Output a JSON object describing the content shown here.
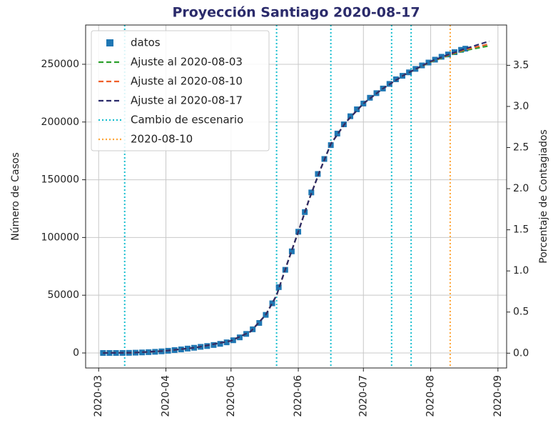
{
  "chart_data": {
    "type": "line",
    "title": "Proyección Santiago 2020-08-17",
    "ylabel": "Número de Casos",
    "y2label": "Porcentaje de Contagiados",
    "xlim": [
      "2020-02-24",
      "2020-09-05"
    ],
    "xticks": [
      {
        "value": "2020-03-01",
        "label": "2020-03"
      },
      {
        "value": "2020-04-01",
        "label": "2020-04"
      },
      {
        "value": "2020-05-01",
        "label": "2020-05"
      },
      {
        "value": "2020-06-01",
        "label": "2020-06"
      },
      {
        "value": "2020-07-01",
        "label": "2020-07"
      },
      {
        "value": "2020-08-01",
        "label": "2020-08"
      },
      {
        "value": "2020-09-01",
        "label": "2020-09"
      }
    ],
    "ylim": [
      -13000,
      284000
    ],
    "yticks": [
      0,
      50000,
      100000,
      150000,
      200000,
      250000
    ],
    "y2lim": [
      -0.18,
      3.99
    ],
    "y2ticks": [
      {
        "value": 0,
        "label": "0.0"
      },
      0.5,
      {
        "value": 1,
        "label": "1.0"
      },
      1.5,
      {
        "value": 2,
        "label": "2.0"
      },
      2.5,
      {
        "value": 3,
        "label": "3.0"
      },
      3.5
    ],
    "grid": true,
    "legend": "upper left",
    "series": [
      {
        "name": "datos",
        "color": "#1f77b4",
        "marker": "square",
        "x": [
          "2020-03-03",
          "2020-03-06",
          "2020-03-09",
          "2020-03-12",
          "2020-03-15",
          "2020-03-18",
          "2020-03-21",
          "2020-03-24",
          "2020-03-27",
          "2020-03-30",
          "2020-04-02",
          "2020-04-05",
          "2020-04-08",
          "2020-04-11",
          "2020-04-14",
          "2020-04-17",
          "2020-04-20",
          "2020-04-23",
          "2020-04-26",
          "2020-04-29",
          "2020-05-02",
          "2020-05-05",
          "2020-05-08",
          "2020-05-11",
          "2020-05-14",
          "2020-05-17",
          "2020-05-20",
          "2020-05-23",
          "2020-05-26",
          "2020-05-29",
          "2020-06-01",
          "2020-06-04",
          "2020-06-07",
          "2020-06-10",
          "2020-06-13",
          "2020-06-16",
          "2020-06-19",
          "2020-06-22",
          "2020-06-25",
          "2020-06-28",
          "2020-07-01",
          "2020-07-04",
          "2020-07-07",
          "2020-07-10",
          "2020-07-13",
          "2020-07-16",
          "2020-07-19",
          "2020-07-22",
          "2020-07-25",
          "2020-07-28",
          "2020-07-31",
          "2020-08-03",
          "2020-08-06",
          "2020-08-09",
          "2020-08-12",
          "2020-08-15",
          "2020-08-17"
        ],
        "values": [
          1,
          5,
          10,
          30,
          100,
          250,
          450,
          700,
          1000,
          1400,
          1900,
          2500,
          3100,
          3800,
          4500,
          5300,
          6000,
          6900,
          7900,
          9200,
          11000,
          13500,
          16500,
          20500,
          26000,
          33000,
          43000,
          57000,
          72000,
          88000,
          105000,
          122000,
          139000,
          155000,
          168000,
          180000,
          190000,
          198000,
          205000,
          211000,
          216000,
          221000,
          225000,
          229000,
          233000,
          237000,
          240000,
          243000,
          246000,
          249000,
          251500,
          254000,
          256500,
          258500,
          260500,
          262500,
          263500
        ]
      },
      {
        "name": "Ajuste al 2020-08-03",
        "color": "#2ca02c",
        "style": "dashed",
        "x": [
          "2020-03-03",
          "2020-03-17",
          "2020-04-01",
          "2020-04-15",
          "2020-05-01",
          "2020-05-10",
          "2020-05-17",
          "2020-05-22",
          "2020-05-27",
          "2020-06-01",
          "2020-06-06",
          "2020-06-11",
          "2020-06-16",
          "2020-06-23",
          "2020-07-01",
          "2020-07-10",
          "2020-07-20",
          "2020-08-01",
          "2020-08-10",
          "2020-08-17",
          "2020-08-28"
        ],
        "values": [
          0,
          200,
          1900,
          4700,
          10500,
          18500,
          33000,
          50000,
          78000,
          105000,
          133000,
          158000,
          181000,
          200000,
          216000,
          229000,
          241000,
          252000,
          258000,
          262000,
          266000
        ]
      },
      {
        "name": "Ajuste al 2020-08-10",
        "color": "#f0602a",
        "style": "dashed",
        "x": [
          "2020-03-03",
          "2020-03-17",
          "2020-04-01",
          "2020-04-15",
          "2020-05-01",
          "2020-05-10",
          "2020-05-17",
          "2020-05-22",
          "2020-05-27",
          "2020-06-01",
          "2020-06-06",
          "2020-06-11",
          "2020-06-16",
          "2020-06-23",
          "2020-07-01",
          "2020-07-10",
          "2020-07-20",
          "2020-08-01",
          "2020-08-10",
          "2020-08-17",
          "2020-08-28"
        ],
        "values": [
          0,
          200,
          1900,
          4700,
          10500,
          18500,
          33000,
          50000,
          78000,
          105000,
          133000,
          158000,
          181000,
          200000,
          216000,
          229000,
          241000,
          252300,
          258600,
          262800,
          267500
        ]
      },
      {
        "name": "Ajuste al 2020-08-17",
        "color": "#2b2b6b",
        "style": "dashed",
        "x": [
          "2020-03-03",
          "2020-03-17",
          "2020-04-01",
          "2020-04-15",
          "2020-05-01",
          "2020-05-10",
          "2020-05-17",
          "2020-05-22",
          "2020-05-27",
          "2020-06-01",
          "2020-06-06",
          "2020-06-11",
          "2020-06-16",
          "2020-06-23",
          "2020-07-01",
          "2020-07-10",
          "2020-07-20",
          "2020-08-01",
          "2020-08-10",
          "2020-08-17",
          "2020-08-28"
        ],
        "values": [
          0,
          200,
          1900,
          4700,
          10500,
          18500,
          33000,
          50000,
          78000,
          105000,
          133000,
          158000,
          181000,
          200000,
          216000,
          229000,
          241000,
          252500,
          259000,
          263500,
          270000
        ]
      }
    ],
    "vlines": [
      {
        "name": "Cambio de escenario",
        "color": "#17becf",
        "style": "dotted",
        "x": [
          "2020-03-13",
          "2020-05-22",
          "2020-06-16",
          "2020-07-14",
          "2020-07-23"
        ]
      },
      {
        "name": "2020-08-10",
        "color": "#ffa537",
        "style": "dotted",
        "x": [
          "2020-08-10"
        ]
      }
    ]
  }
}
